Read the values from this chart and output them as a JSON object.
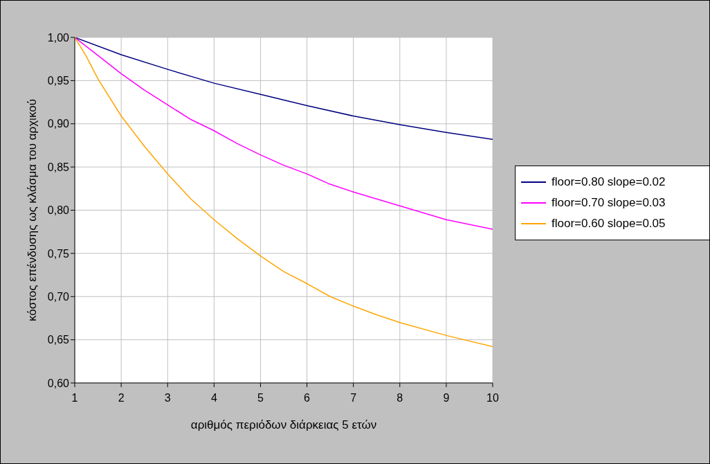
{
  "chart_data": {
    "type": "line",
    "xlabel": "αριθμός περιόδων διάρκειας 5 ετών",
    "ylabel": "κόστος επένδυσης ως κλάσμα του αρχικού",
    "xlim": [
      1,
      10
    ],
    "xticks": [
      1,
      2,
      3,
      4,
      5,
      6,
      7,
      8,
      9,
      10
    ],
    "ylim": [
      0.6,
      1.0
    ],
    "yticks": [
      {
        "value": 0.6,
        "label": "0,60"
      },
      {
        "value": 0.65,
        "label": "0,65"
      },
      {
        "value": 0.7,
        "label": "0,70"
      },
      {
        "value": 0.75,
        "label": "0,75"
      },
      {
        "value": 0.8,
        "label": "0,80"
      },
      {
        "value": 0.85,
        "label": "0,85"
      },
      {
        "value": 0.9,
        "label": "0,90"
      },
      {
        "value": 0.95,
        "label": "0,95"
      },
      {
        "value": 1.0,
        "label": "1,00"
      }
    ],
    "grid": true,
    "legend": "right",
    "marker": "none",
    "line_style": "solid",
    "series": [
      {
        "name": "floor=0.80 slope=0.02",
        "color": "#000080",
        "x": [
          1,
          2,
          3,
          4,
          5,
          6,
          7,
          8,
          9,
          10
        ],
        "values": [
          1.0,
          0.98,
          0.963,
          0.947,
          0.934,
          0.921,
          0.909,
          0.899,
          0.89,
          0.882
        ]
      },
      {
        "name": "floor=0.70 slope=0.03",
        "color": "#ff00ff",
        "x": [
          1,
          1.5,
          2,
          2.5,
          3,
          3.5,
          4,
          4.5,
          5,
          5.5,
          6,
          6.5,
          7,
          8,
          9,
          10
        ],
        "values": [
          1.0,
          0.979,
          0.958,
          0.939,
          0.922,
          0.905,
          0.892,
          0.877,
          0.864,
          0.852,
          0.842,
          0.83,
          0.821,
          0.805,
          0.789,
          0.778
        ]
      },
      {
        "name": "floor=0.60 slope=0.05",
        "color": "#ffa500",
        "x": [
          1,
          1.25,
          1.5,
          2,
          2.5,
          3,
          3.5,
          4,
          4.5,
          5,
          5.5,
          6,
          6.5,
          7,
          7.5,
          8,
          9,
          10
        ],
        "values": [
          1.0,
          0.978,
          0.952,
          0.909,
          0.874,
          0.842,
          0.813,
          0.789,
          0.767,
          0.747,
          0.729,
          0.715,
          0.7,
          0.689,
          0.679,
          0.67,
          0.655,
          0.642
        ]
      }
    ]
  }
}
